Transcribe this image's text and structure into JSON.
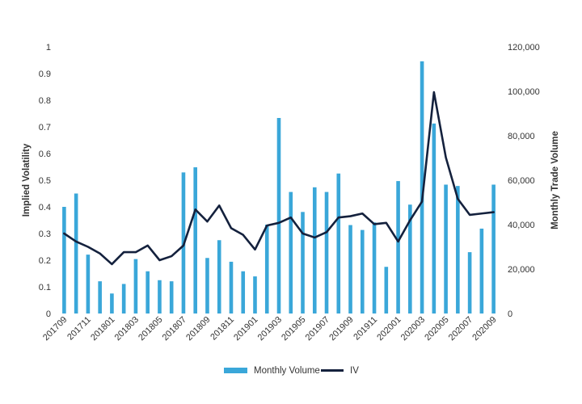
{
  "chart_data": {
    "type": "bar+line",
    "x": [
      "201709",
      "201710",
      "201711",
      "201712",
      "201801",
      "201802",
      "201803",
      "201804",
      "201805",
      "201806",
      "201807",
      "201808",
      "201809",
      "201810",
      "201811",
      "201812",
      "201901",
      "201902",
      "201903",
      "201904",
      "201905",
      "201906",
      "201907",
      "201908",
      "201909",
      "201910",
      "201911",
      "201912",
      "202001",
      "202002",
      "202003",
      "202004",
      "202005",
      "202006",
      "202007",
      "202008",
      "202009"
    ],
    "x_tick_labels": [
      "201709",
      "201711",
      "201801",
      "201803",
      "201805",
      "201807",
      "201809",
      "201811",
      "201901",
      "201903",
      "201905",
      "201907",
      "201909",
      "201911",
      "202001",
      "202003",
      "202005",
      "202007",
      "202009"
    ],
    "series": [
      {
        "name": "Monthly Volume",
        "type": "bar",
        "axis": "right",
        "color": "#3aa7d9",
        "values": [
          48000,
          54000,
          26500,
          14500,
          9000,
          13300,
          24500,
          19000,
          15000,
          14500,
          63500,
          65800,
          25000,
          33000,
          23300,
          19000,
          16700,
          40000,
          88000,
          54700,
          45700,
          56800,
          54700,
          63000,
          39800,
          37600,
          41000,
          21000,
          59600,
          49000,
          113500,
          85500,
          58000,
          57400,
          27600,
          38200,
          58000
        ]
      },
      {
        "name": "IV",
        "type": "line",
        "axis": "left",
        "color": "#14213d",
        "values": [
          0.3,
          0.27,
          0.25,
          0.225,
          0.185,
          0.23,
          0.23,
          0.255,
          0.2,
          0.215,
          0.255,
          0.39,
          0.345,
          0.405,
          0.32,
          0.295,
          0.24,
          0.33,
          0.34,
          0.36,
          0.3,
          0.285,
          0.305,
          0.36,
          0.365,
          0.375,
          0.335,
          0.34,
          0.27,
          0.35,
          0.42,
          0.83,
          0.585,
          0.43,
          0.37,
          0.375,
          0.38
        ]
      }
    ],
    "ylabel_left": "Implied Volatility",
    "ylim_left": [
      0,
      1
    ],
    "yticks_left": [
      "0",
      "0.1",
      "0.2",
      "0.3",
      "0.4",
      "0.5",
      "0.6",
      "0.7",
      "0.8",
      "0.9",
      "1"
    ],
    "ylabel_right": "Monthly Trade Volume",
    "ylim_right": [
      0,
      120000
    ],
    "yticks_right": [
      "0",
      "20,000",
      "40,000",
      "60,000",
      "80,000",
      "100,000",
      "120,000"
    ],
    "grid": false,
    "legend": {
      "position": "bottom",
      "entries": [
        "Monthly Volume",
        "IV"
      ]
    }
  }
}
